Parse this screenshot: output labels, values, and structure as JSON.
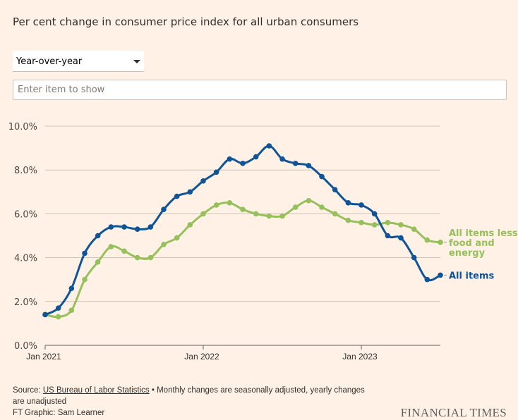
{
  "header": {
    "title": "Per cent change in consumer price index for all urban consumers"
  },
  "controls": {
    "period_select": {
      "value": "Year-over-year"
    },
    "item_search": {
      "placeholder": "Enter item to show",
      "value": ""
    }
  },
  "chart_data": {
    "type": "line",
    "title": "Per cent change in consumer price index for all urban consumers",
    "xlabel": "",
    "ylabel": "",
    "ylim": [
      0,
      10
    ],
    "y_ticks": [
      0,
      2,
      4,
      6,
      8,
      10
    ],
    "y_tick_labels": [
      "0.0%",
      "2.0%",
      "4.0%",
      "6.0%",
      "8.0%",
      "10.0%"
    ],
    "x_start": "2021-01",
    "x_ticks": [
      0,
      12,
      24
    ],
    "x_tick_labels": [
      "Jan 2021",
      "Jan 2022",
      "Jan 2023"
    ],
    "x_max": 30,
    "grid": true,
    "legend_placement": "right (inline labels at line ends)",
    "series": [
      {
        "name": "All items less food and energy",
        "label_lines": [
          "All items less",
          "food and",
          "energy"
        ],
        "color": "#96c05b",
        "values": [
          1.4,
          1.3,
          1.6,
          3.0,
          3.8,
          4.5,
          4.3,
          4.0,
          4.0,
          4.6,
          4.9,
          5.5,
          6.0,
          6.4,
          6.5,
          6.2,
          6.0,
          5.9,
          5.9,
          6.3,
          6.6,
          6.3,
          6.0,
          5.7,
          5.6,
          5.5,
          5.6,
          5.5,
          5.3,
          4.8,
          4.7
        ]
      },
      {
        "name": "All items",
        "label_lines": [
          "All items"
        ],
        "color": "#0f5499",
        "values": [
          1.4,
          1.7,
          2.6,
          4.2,
          5.0,
          5.4,
          5.4,
          5.3,
          5.4,
          6.2,
          6.8,
          7.0,
          7.5,
          7.9,
          8.5,
          8.3,
          8.6,
          9.1,
          8.5,
          8.3,
          8.2,
          7.7,
          7.1,
          6.5,
          6.4,
          6.0,
          5.0,
          4.9,
          4.0,
          3.0,
          3.2
        ]
      }
    ]
  },
  "footer": {
    "source_prefix": "Source: ",
    "source_link": "US Bureau of Labor Statistics",
    "source_note": " • Monthly changes are seasonally adjusted, yearly changes",
    "source_note2": "are unadjusted",
    "credit": "FT Graphic: Sam Learner",
    "brand": "FINANCIAL TIMES"
  }
}
